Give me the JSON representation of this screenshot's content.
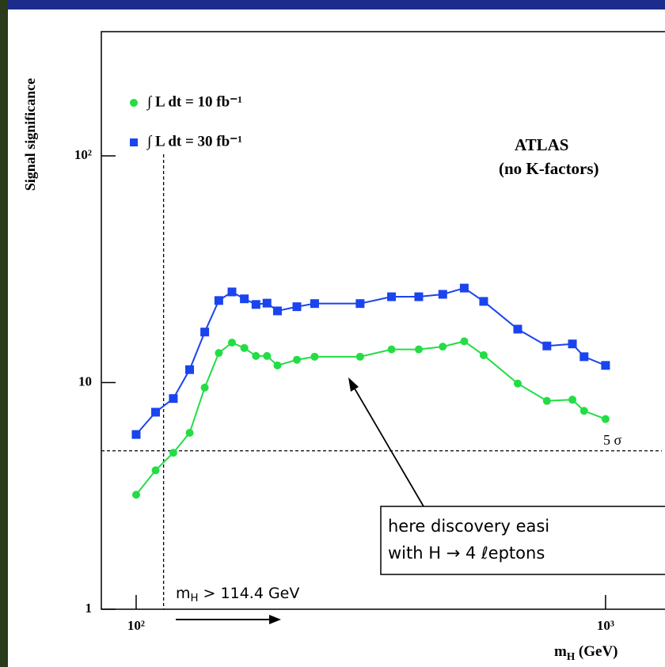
{
  "chart_data": {
    "type": "line",
    "y_label": "Signal significance",
    "x_label": {
      "main": "m",
      "sub": "H",
      "rest": " (GeV)"
    },
    "x_scale": "log",
    "y_scale": "log",
    "xlim": [
      84.3,
      1318
    ],
    "ylim": [
      1,
      353
    ],
    "xticks": [
      {
        "value": 100,
        "label": "10²"
      },
      {
        "value": 1000,
        "label": "10³"
      }
    ],
    "yticks": [
      1,
      10,
      {
        "value": 100,
        "label": "10²"
      }
    ],
    "legend": "upper left",
    "series": [
      {
        "name": "∫ L dt = 10 fb⁻¹",
        "color": "#22dd44",
        "marker": "circle",
        "x": [
          100,
          110,
          120,
          130,
          140,
          150,
          160,
          170,
          180,
          190,
          200,
          220,
          240,
          300,
          350,
          400,
          450,
          500,
          550,
          650,
          750,
          850,
          900,
          1000
        ],
        "values": [
          3.2,
          4.1,
          4.9,
          6.0,
          9.5,
          13.5,
          15.0,
          14.2,
          13.1,
          13.1,
          11.9,
          12.6,
          13.0,
          13.0,
          14.0,
          14.0,
          14.4,
          15.2,
          13.2,
          9.9,
          8.3,
          8.4,
          7.5,
          6.9
        ]
      },
      {
        "name": "∫ L dt = 30 fb⁻¹",
        "color": "#1a44ee",
        "marker": "square",
        "x": [
          100,
          110,
          120,
          130,
          140,
          150,
          160,
          170,
          180,
          190,
          200,
          220,
          240,
          300,
          350,
          400,
          450,
          500,
          550,
          650,
          750,
          850,
          900,
          1000
        ],
        "values": [
          5.9,
          7.4,
          8.5,
          11.4,
          16.7,
          23.0,
          25.1,
          23.4,
          22.1,
          22.4,
          20.7,
          21.6,
          22.3,
          22.3,
          23.9,
          23.9,
          24.5,
          26.1,
          22.8,
          17.2,
          14.5,
          14.8,
          13.0,
          11.9
        ]
      }
    ],
    "vline": {
      "x": 114.4
    },
    "hline": {
      "y": 5,
      "label": "5 σ"
    },
    "annotations": {
      "atlas": "ATLAS",
      "kfactor": "(no K-factors)",
      "limit": {
        "main": "m",
        "sub": "H",
        "rest": " > 114.4 GeV"
      },
      "box": [
        "here discovery easi",
        "with H → 4 ℓeptons"
      ]
    }
  }
}
